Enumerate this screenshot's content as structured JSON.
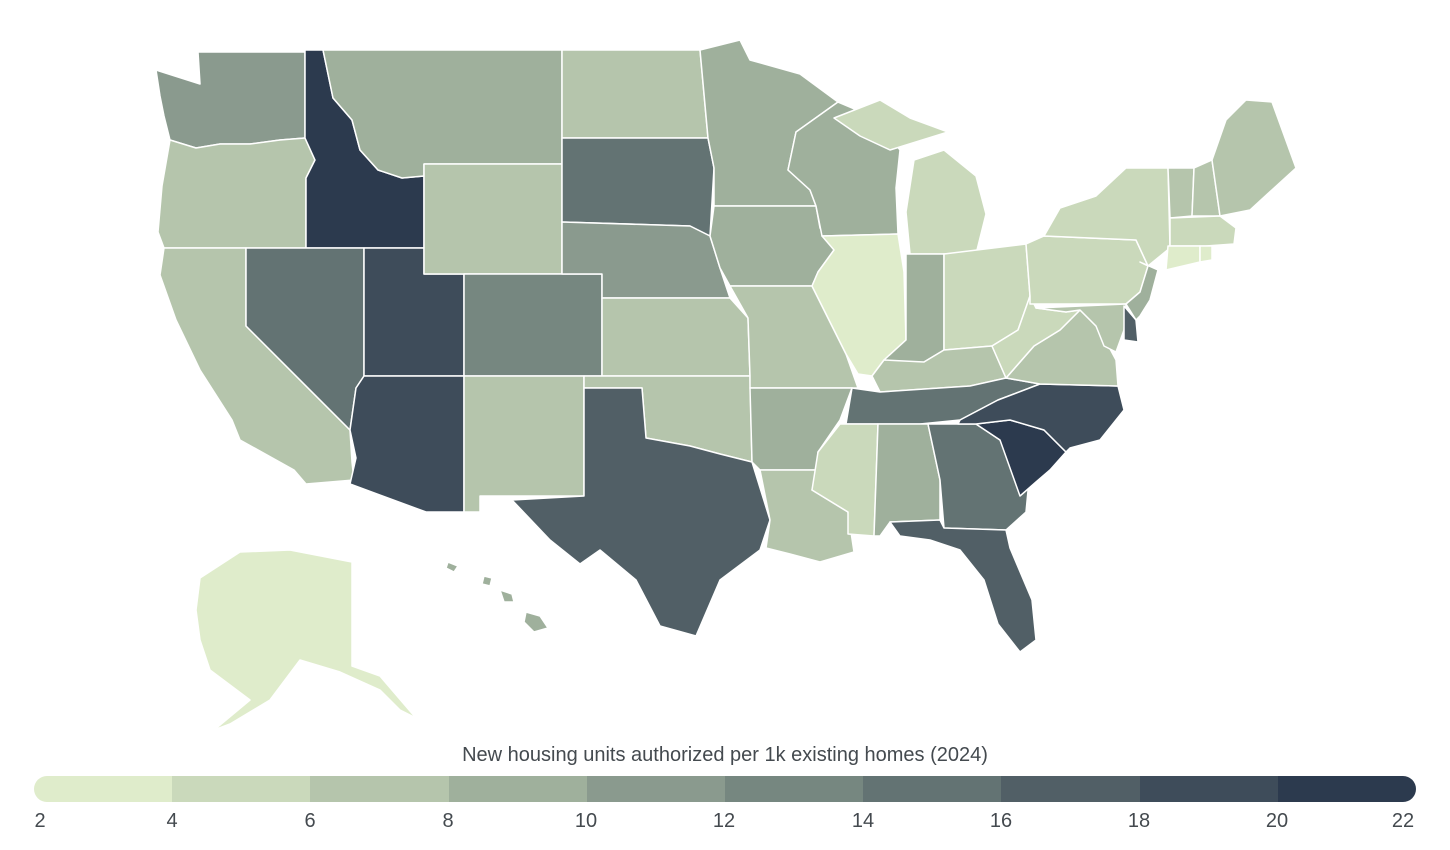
{
  "legend": {
    "title": "New housing units authorized per 1k existing homes (2024)",
    "ticks": [
      "2",
      "4",
      "6",
      "8",
      "10",
      "12",
      "14",
      "16",
      "18",
      "20",
      "22"
    ],
    "colors": [
      "#dfeccb",
      "#cad9bb",
      "#b5c5ac",
      "#9fb09c",
      "#8a9a8e",
      "#768780",
      "#637373",
      "#515f66",
      "#3e4c5a",
      "#2c3a4e"
    ]
  },
  "map_data": {
    "type": "choropleth",
    "regions": [
      {
        "id": "WA",
        "bin": 4
      },
      {
        "id": "OR",
        "bin": 2
      },
      {
        "id": "CA",
        "bin": 2
      },
      {
        "id": "ID",
        "bin": 9
      },
      {
        "id": "NV",
        "bin": 6
      },
      {
        "id": "UT",
        "bin": 8
      },
      {
        "id": "AZ",
        "bin": 8
      },
      {
        "id": "MT",
        "bin": 3
      },
      {
        "id": "WY",
        "bin": 2
      },
      {
        "id": "CO",
        "bin": 5
      },
      {
        "id": "NM",
        "bin": 2
      },
      {
        "id": "ND",
        "bin": 2
      },
      {
        "id": "SD",
        "bin": 6
      },
      {
        "id": "NE",
        "bin": 4
      },
      {
        "id": "KS",
        "bin": 2
      },
      {
        "id": "OK",
        "bin": 2
      },
      {
        "id": "TX",
        "bin": 7
      },
      {
        "id": "MN",
        "bin": 3
      },
      {
        "id": "IA",
        "bin": 3
      },
      {
        "id": "MO",
        "bin": 2
      },
      {
        "id": "AR",
        "bin": 3
      },
      {
        "id": "LA",
        "bin": 2
      },
      {
        "id": "WI",
        "bin": 3
      },
      {
        "id": "IL",
        "bin": 0
      },
      {
        "id": "MI",
        "bin": 1
      },
      {
        "id": "IN",
        "bin": 3
      },
      {
        "id": "OH",
        "bin": 1
      },
      {
        "id": "KY",
        "bin": 2
      },
      {
        "id": "TN",
        "bin": 6
      },
      {
        "id": "MS",
        "bin": 1
      },
      {
        "id": "AL",
        "bin": 3
      },
      {
        "id": "GA",
        "bin": 6
      },
      {
        "id": "FL",
        "bin": 7
      },
      {
        "id": "SC",
        "bin": 9
      },
      {
        "id": "NC",
        "bin": 8
      },
      {
        "id": "VA",
        "bin": 2
      },
      {
        "id": "WV",
        "bin": 1
      },
      {
        "id": "PA",
        "bin": 1
      },
      {
        "id": "NY",
        "bin": 1
      },
      {
        "id": "VT",
        "bin": 2
      },
      {
        "id": "NH",
        "bin": 2
      },
      {
        "id": "ME",
        "bin": 2
      },
      {
        "id": "MA",
        "bin": 1
      },
      {
        "id": "CT",
        "bin": 0
      },
      {
        "id": "RI",
        "bin": 0
      },
      {
        "id": "NJ",
        "bin": 3
      },
      {
        "id": "DE",
        "bin": 7
      },
      {
        "id": "MD",
        "bin": 2
      },
      {
        "id": "AK",
        "bin": 0
      },
      {
        "id": "HI",
        "bin": 3
      }
    ]
  }
}
